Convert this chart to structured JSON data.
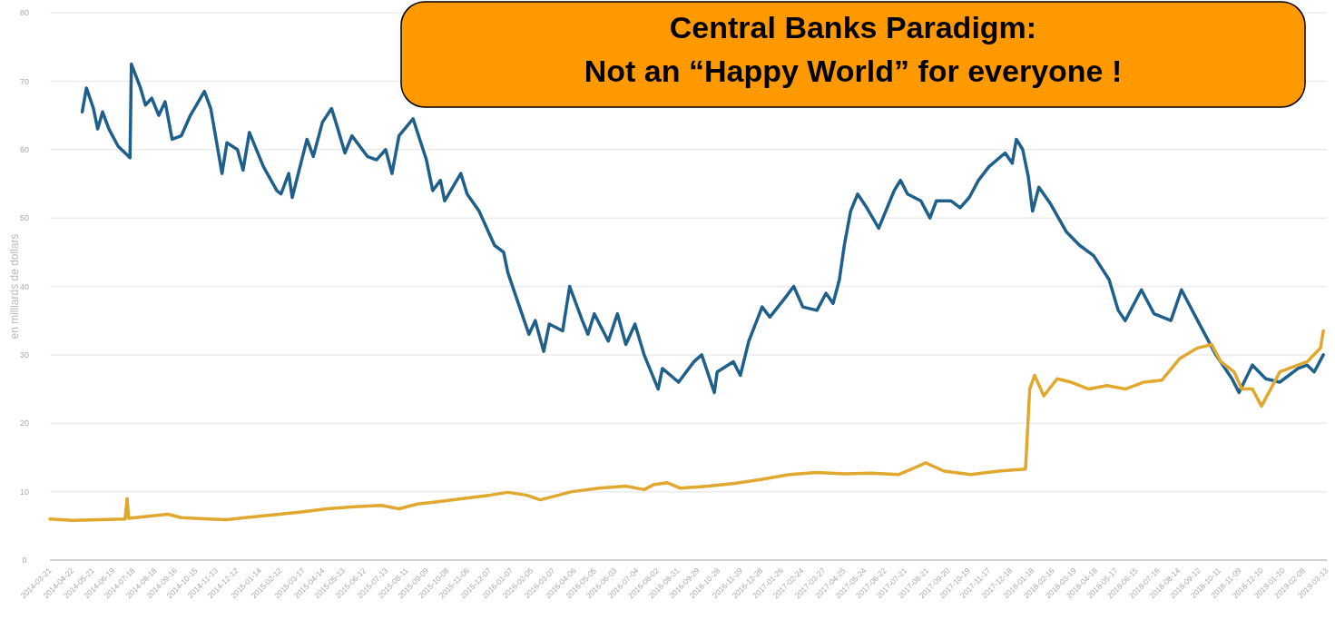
{
  "chart_data": {
    "type": "line",
    "title": "Central Banks Paradigm:",
    "subtitle": "Not an “Happy World” for everyone !",
    "ylabel": "en milliards de dollars",
    "xlim": [
      "2014-03-21",
      "2019-03-13"
    ],
    "ylim": [
      0,
      80
    ],
    "yticks": [
      0,
      10,
      20,
      30,
      40,
      50,
      60,
      70,
      80
    ],
    "grid": "y",
    "marker": "none",
    "line_style": "solid",
    "xticks": [
      "2014-03-21",
      "2014-04-22",
      "2014-05-21",
      "2014-06-19",
      "2014-07-18",
      "2014-08-18",
      "2014-09-16",
      "2014-10-15",
      "2014-11-13",
      "2014-12-12",
      "2015-01-14",
      "2015-02-12",
      "2015-03-17",
      "2015-04-14",
      "2015-05-13",
      "2015-06-12",
      "2015-07-13",
      "2015-08-11",
      "2015-09-09",
      "2015-10-08",
      "2015-11-06",
      "2015-12-07",
      "2016-01-07",
      "2016-02-05",
      "2016-03-07",
      "2016-04-06",
      "2016-05-05",
      "2016-06-03",
      "2016-07-04",
      "2016-08-02",
      "2016-08-31",
      "2016-09-29",
      "2016-10-28",
      "2016-11-29",
      "2016-12-28",
      "2017-01-26",
      "2017-02-24",
      "2017-03-27",
      "2017-04-25",
      "2017-05-24",
      "2017-06-22",
      "2017-07-21",
      "2017-08-21",
      "2017-09-20",
      "2017-10-19",
      "2017-11-17",
      "2017-12-18",
      "2018-01-18",
      "2018-02-16",
      "2018-03-19",
      "2018-04-18",
      "2018-05-17",
      "2018-06-15",
      "2018-07-16",
      "2018-08-14",
      "2018-09-12",
      "2018-10-11",
      "2018-11-09",
      "2018-12-10",
      "2019-01-10",
      "2019-02-08",
      "2019-03-13"
    ],
    "series": [
      {
        "color": "#1f5f8b",
        "x": [
          "2014-05-06",
          "2014-05-12",
          "2014-05-22",
          "2014-05-28",
          "2014-06-04",
          "2014-06-13",
          "2014-06-26",
          "2014-07-13",
          "2014-07-15",
          "2014-07-28",
          "2014-08-04",
          "2014-08-13",
          "2014-08-23",
          "2014-09-01",
          "2014-09-11",
          "2014-09-24",
          "2014-10-07",
          "2014-10-27",
          "2014-11-05",
          "2014-11-21",
          "2014-11-28",
          "2014-12-13",
          "2014-12-21",
          "2014-12-30",
          "2015-01-19",
          "2015-02-07",
          "2015-02-13",
          "2015-02-24",
          "2015-03-01",
          "2015-03-22",
          "2015-03-31",
          "2015-04-13",
          "2015-04-26",
          "2015-05-05",
          "2015-05-15",
          "2015-05-25",
          "2015-06-16",
          "2015-06-29",
          "2015-07-12",
          "2015-07-21",
          "2015-07-31",
          "2015-08-20",
          "2015-09-08",
          "2015-09-17",
          "2015-09-28",
          "2015-10-04",
          "2015-10-27",
          "2015-11-05",
          "2015-11-22",
          "2015-12-14",
          "2015-12-27",
          "2016-01-02",
          "2016-01-22",
          "2016-02-01",
          "2016-02-10",
          "2016-02-22",
          "2016-03-01",
          "2016-03-20",
          "2016-03-30",
          "2016-04-17",
          "2016-04-25",
          "2016-05-04",
          "2016-05-24",
          "2016-06-06",
          "2016-06-18",
          "2016-07-01",
          "2016-07-14",
          "2016-08-03",
          "2016-08-09",
          "2016-09-01",
          "2016-09-23",
          "2016-10-04",
          "2016-10-22",
          "2016-10-26",
          "2016-11-18",
          "2016-11-28",
          "2016-12-10",
          "2016-12-29",
          "2017-01-09",
          "2017-02-01",
          "2017-02-12",
          "2017-02-25",
          "2017-03-17",
          "2017-03-30",
          "2017-04-09",
          "2017-04-18",
          "2017-04-25",
          "2017-05-04",
          "2017-05-14",
          "2017-05-27",
          "2017-06-13",
          "2017-07-05",
          "2017-07-14",
          "2017-07-24",
          "2017-08-12",
          "2017-08-25",
          "2017-09-03",
          "2017-09-24",
          "2017-10-07",
          "2017-10-20",
          "2017-11-02",
          "2017-11-17",
          "2017-12-10",
          "2017-12-20",
          "2017-12-26",
          "2018-01-04",
          "2018-01-12",
          "2018-01-18",
          "2018-01-27",
          "2018-02-13",
          "2018-03-07",
          "2018-03-26",
          "2018-04-15",
          "2018-05-07",
          "2018-05-20",
          "2018-05-30",
          "2018-06-22",
          "2018-07-10",
          "2018-08-03",
          "2018-08-18",
          "2018-09-10",
          "2018-10-06",
          "2018-10-29",
          "2018-11-08",
          "2018-11-27",
          "2018-12-16",
          "2019-01-05",
          "2019-01-31",
          "2019-02-13",
          "2019-02-23",
          "2019-03-08"
        ],
        "values": [
          65.5,
          69,
          66,
          63,
          65.5,
          63,
          60.5,
          58.8,
          72.5,
          69,
          66.5,
          67.5,
          65,
          67,
          61.5,
          62,
          65,
          68.5,
          66,
          56.5,
          61,
          60,
          57,
          62.5,
          57.5,
          54,
          53.5,
          56.5,
          53,
          61.5,
          59,
          64,
          66,
          63,
          59.5,
          62,
          59,
          58.5,
          60,
          56.5,
          62,
          64.5,
          58.5,
          54,
          55.5,
          52.5,
          56.5,
          53.5,
          51,
          46,
          45,
          42,
          36,
          33,
          35,
          30.5,
          34.5,
          33.5,
          40,
          35,
          33,
          36,
          32,
          36,
          31.5,
          34.5,
          30,
          25,
          28,
          26,
          29,
          30,
          24.5,
          27.5,
          29,
          27,
          32,
          37,
          35.5,
          38.5,
          40,
          37,
          36.5,
          39,
          37.5,
          41,
          46,
          51,
          53.5,
          51.5,
          48.5,
          54,
          55.5,
          53.5,
          52.5,
          50,
          52.5,
          52.5,
          51.5,
          53,
          55.5,
          57.5,
          59.5,
          58,
          61.5,
          60,
          56,
          51,
          54.5,
          52,
          48,
          46,
          44.5,
          41,
          36.5,
          35,
          39.5,
          36,
          35,
          39.5,
          35,
          30,
          26.5,
          24.5,
          28.5,
          26.5,
          26,
          28,
          28.5,
          27.5,
          30
        ]
      },
      {
        "color": "#e0a82e",
        "x": [
          "2014-03-21",
          "2014-04-22",
          "2014-05-31",
          "2014-07-06",
          "2014-07-09",
          "2014-07-11",
          "2014-08-17",
          "2014-09-05",
          "2014-09-24",
          "2014-11-02",
          "2014-11-28",
          "2014-12-24",
          "2015-02-01",
          "2015-03-11",
          "2015-04-19",
          "2015-05-28",
          "2015-07-06",
          "2015-07-31",
          "2015-08-26",
          "2015-09-21",
          "2015-10-30",
          "2015-12-08",
          "2016-01-02",
          "2016-01-28",
          "2016-02-17",
          "2016-03-07",
          "2016-04-02",
          "2016-05-11",
          "2016-06-18",
          "2016-07-14",
          "2016-07-27",
          "2016-08-16",
          "2016-09-04",
          "2016-10-13",
          "2016-11-20",
          "2016-12-29",
          "2017-02-06",
          "2017-03-17",
          "2017-04-25",
          "2017-06-02",
          "2017-07-11",
          "2017-08-19",
          "2017-09-14",
          "2017-10-22",
          "2017-11-30",
          "2018-01-08",
          "2018-01-14",
          "2018-01-21",
          "2018-02-03",
          "2018-02-22",
          "2018-03-14",
          "2018-04-08",
          "2018-05-04",
          "2018-05-30",
          "2018-06-25",
          "2018-07-21",
          "2018-08-16",
          "2018-09-10",
          "2018-09-30",
          "2018-10-13",
          "2018-11-01",
          "2018-11-12",
          "2018-11-27",
          "2018-12-10",
          "2018-12-23",
          "2019-01-05",
          "2019-01-18",
          "2019-02-13",
          "2019-03-04",
          "2019-03-08"
        ],
        "values": [
          6,
          5.8,
          5.9,
          6,
          9,
          6.1,
          6.5,
          6.7,
          6.2,
          6,
          5.9,
          6.2,
          6.6,
          7,
          7.5,
          7.8,
          8,
          7.5,
          8.2,
          8.5,
          9,
          9.5,
          9.9,
          9.5,
          8.8,
          9.3,
          10,
          10.5,
          10.8,
          10.3,
          11,
          11.3,
          10.5,
          10.8,
          11.2,
          11.8,
          12.5,
          12.8,
          12.6,
          12.7,
          12.5,
          14.2,
          13,
          12.5,
          13,
          13.3,
          25,
          27,
          24,
          26.5,
          26,
          25,
          25.5,
          25,
          26,
          26.3,
          29.5,
          31,
          31.5,
          29,
          27.5,
          25,
          25,
          22.5,
          25,
          27.5,
          28,
          29,
          31,
          33.5
        ]
      }
    ]
  }
}
